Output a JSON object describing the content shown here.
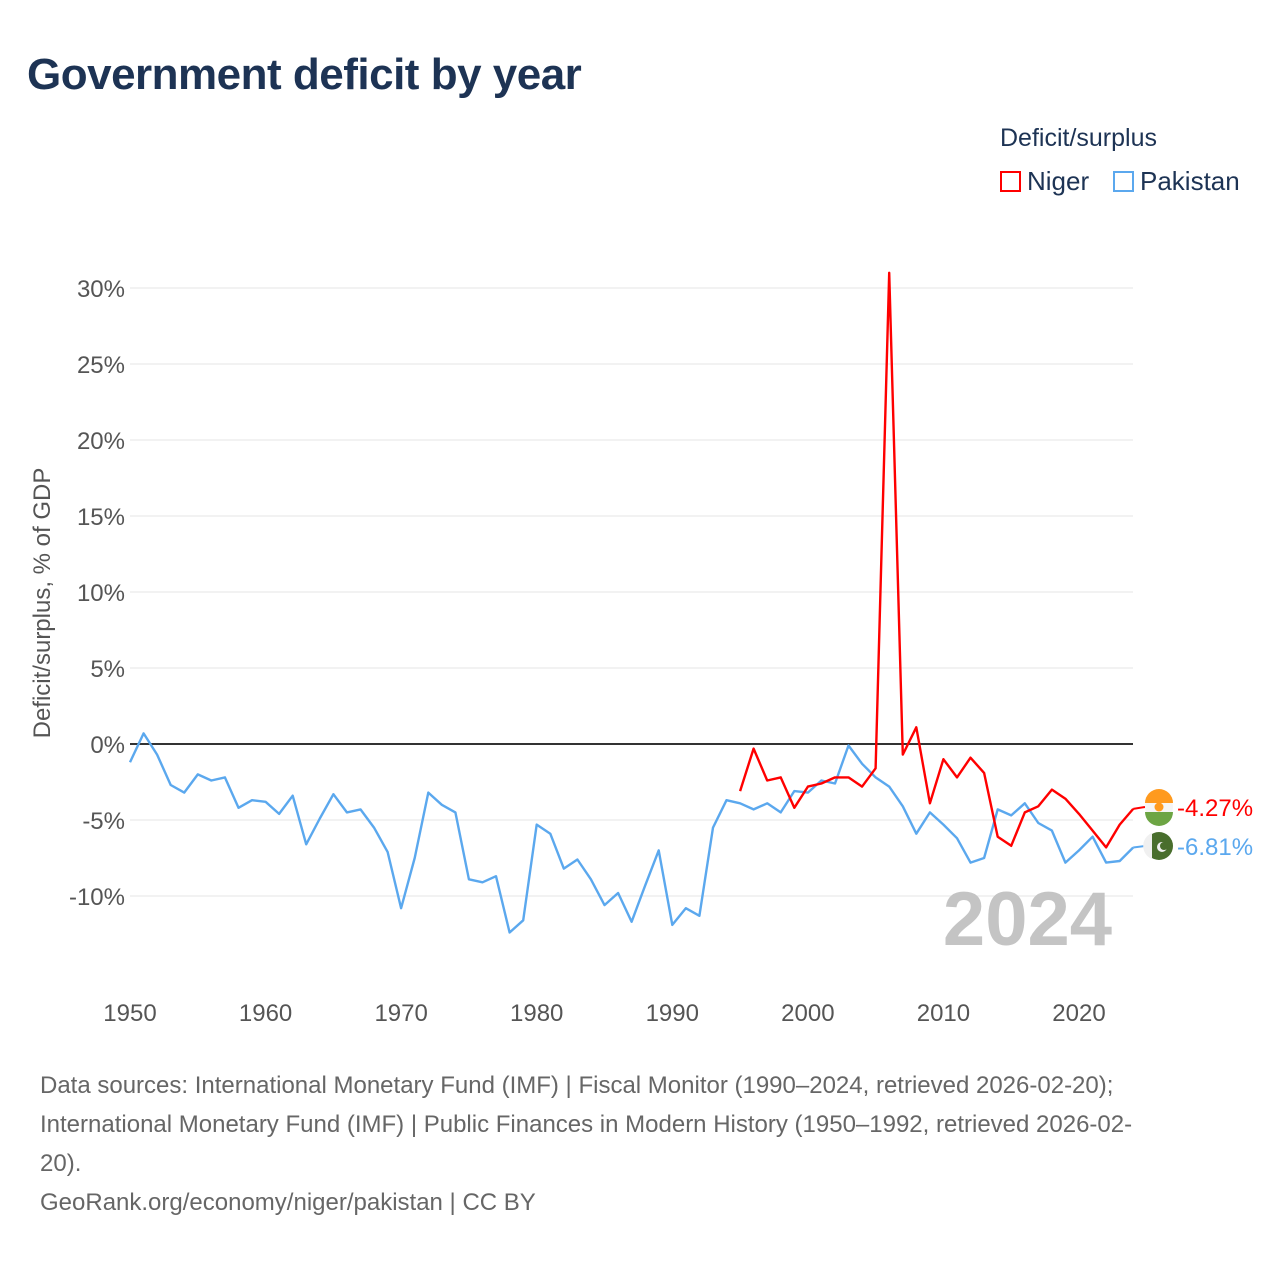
{
  "title": "Government deficit by year",
  "legend": {
    "title": "Deficit/surplus",
    "items": [
      {
        "name": "Niger",
        "color": "#ff0000"
      },
      {
        "name": "Pakistan",
        "color": "#5ba8ee"
      }
    ]
  },
  "year_watermark": "2024",
  "chart_data": {
    "type": "line",
    "title": "Government deficit by year",
    "xlabel": "",
    "ylabel": "Deficit/surplus, % of GDP",
    "xlim": [
      1950,
      2025
    ],
    "ylim": [
      -15,
      31
    ],
    "x_ticks": [
      1950,
      1960,
      1970,
      1980,
      1990,
      2000,
      2010,
      2020
    ],
    "x_tick_labels": [
      "1950",
      "1960",
      "1970",
      "1980",
      "1990",
      "2000",
      "2010",
      "2020"
    ],
    "y_ticks": [
      -10,
      -5,
      0,
      5,
      10,
      15,
      20,
      25,
      30
    ],
    "y_tick_labels": [
      "-10%",
      "-5%",
      "0%",
      "5%",
      "10%",
      "15%",
      "20%",
      "25%",
      "30%"
    ],
    "grid": true,
    "legend_position": "top-right",
    "series": [
      {
        "name": "Niger",
        "color": "#ff0000",
        "end_label": "-4.27%",
        "x_start": 1995,
        "values": [
          -3.1,
          -0.3,
          -2.4,
          -2.2,
          -4.2,
          -2.8,
          -2.6,
          -2.2,
          -2.2,
          -2.8,
          -1.6,
          31.0,
          -0.7,
          1.1,
          -3.9,
          -1.0,
          -2.2,
          -0.9,
          -1.9,
          -6.1,
          -6.7,
          -4.5,
          -4.1,
          -3.0,
          -3.6,
          -4.6,
          -5.7,
          -6.8,
          -5.3,
          -4.27
        ]
      },
      {
        "name": "Pakistan",
        "color": "#5ba8ee",
        "end_label": "-6.81%",
        "x_start": 1950,
        "values": [
          -1.2,
          0.7,
          -0.7,
          -2.7,
          -3.2,
          -2.0,
          -2.4,
          -2.2,
          -4.2,
          -3.7,
          -3.8,
          -4.6,
          -3.4,
          -6.6,
          -4.9,
          -3.3,
          -4.5,
          -4.3,
          -5.5,
          -7.1,
          -10.8,
          -7.5,
          -3.2,
          -4.0,
          -4.5,
          -8.9,
          -9.1,
          -8.7,
          -12.4,
          -11.6,
          -5.3,
          -5.9,
          -8.2,
          -7.6,
          -8.9,
          -10.6,
          -9.8,
          -11.7,
          -9.3,
          -7.0,
          -11.9,
          -10.8,
          -11.3,
          -5.5,
          -3.7,
          -3.9,
          -4.3,
          -3.9,
          -4.5,
          -3.1,
          -3.2,
          -2.4,
          -2.6,
          -0.1,
          -1.3,
          -2.2,
          -2.8,
          -4.1,
          -5.9,
          -4.5,
          -5.3,
          -6.2,
          -7.8,
          -7.5,
          -4.3,
          -4.7,
          -3.9,
          -5.2,
          -5.7,
          -7.8,
          -7.0,
          -6.1,
          -7.8,
          -7.7,
          -6.81
        ]
      }
    ]
  },
  "sources": {
    "line1": "Data sources: International Monetary Fund (IMF) | Fiscal Monitor (1990–2024, retrieved 2026-02-20);",
    "line2": "International Monetary Fund (IMF) | Public Finances in Modern History (1950–1992, retrieved 2026-02-",
    "line3": "20).",
    "credit": "GeoRank.org/economy/niger/pakistan | CC BY"
  }
}
